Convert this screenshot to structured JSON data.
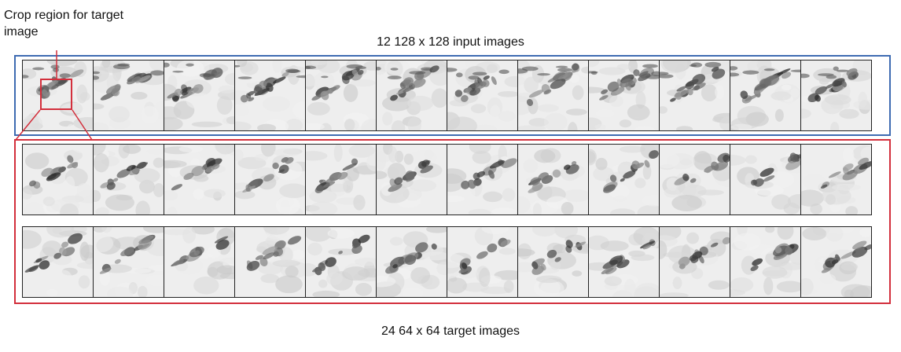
{
  "labels": {
    "crop_region": "Crop region for target image",
    "input_title": "12 128 x 128 input images",
    "target_title": "24 64 x 64 target images"
  },
  "colors": {
    "input_frame": "#3e6bb2",
    "target_frame": "#d32f3c",
    "crop_box": "#d32f3c",
    "leader_line": "#d32f3c"
  },
  "input_images": {
    "count": 12,
    "resolution": "128 x 128"
  },
  "target_images": {
    "count": 24,
    "rows": 2,
    "per_row": 12,
    "resolution": "64 x 64"
  }
}
